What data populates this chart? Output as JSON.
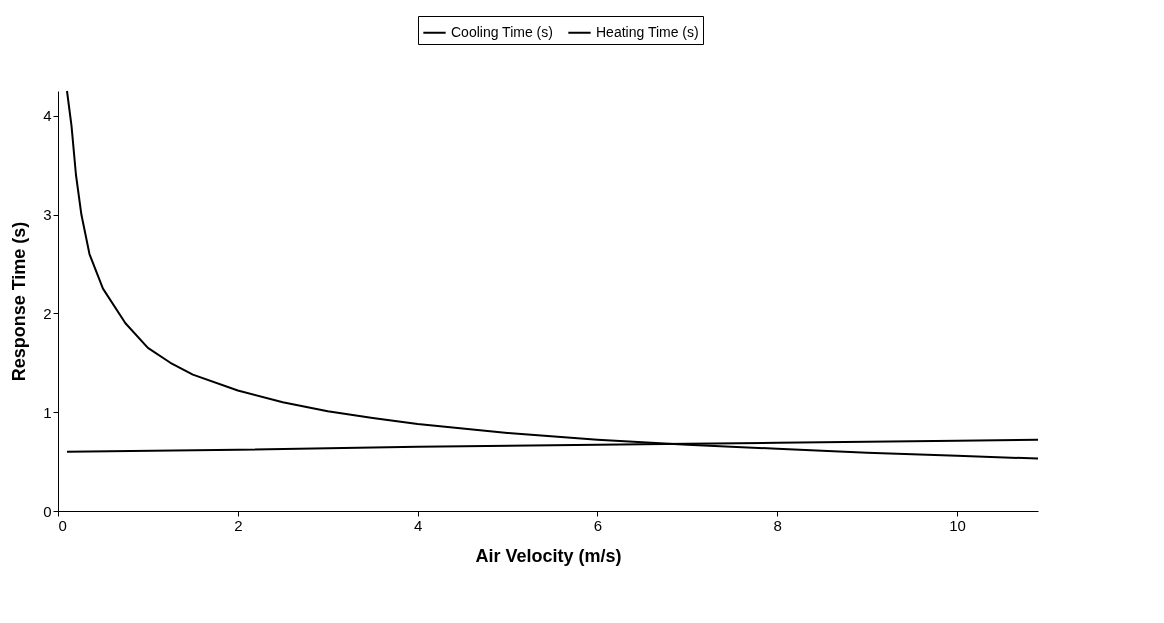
{
  "chart_data": {
    "type": "line",
    "xlabel": "Air Velocity (m/s)",
    "ylabel": "Response Time (s)",
    "xlim": [
      0,
      10.9
    ],
    "xticks": [
      0,
      2,
      4,
      6,
      8,
      10
    ],
    "ylim": [
      0,
      4.25
    ],
    "yticks": [
      0,
      1,
      2,
      3,
      4
    ],
    "legend": "top",
    "grid": false,
    "marker": "none",
    "line_style": "solid",
    "series": [
      {
        "name": "Cooling Time (s)",
        "color": "#000000",
        "x": [
          0.1,
          0.15,
          0.2,
          0.26,
          0.35,
          0.5,
          0.75,
          1.0,
          1.25,
          1.5,
          2,
          2.5,
          3,
          3.5,
          4,
          5,
          6,
          7,
          8,
          9,
          10,
          10.9
        ],
        "values": [
          4.25,
          3.9,
          3.4,
          3.0,
          2.6,
          2.25,
          1.9,
          1.65,
          1.5,
          1.38,
          1.22,
          1.1,
          1.01,
          0.94,
          0.88,
          0.79,
          0.72,
          0.67,
          0.63,
          0.59,
          0.56,
          0.53
        ]
      },
      {
        "name": "Heating Time (s)",
        "color": "#000000",
        "x": [
          0.1,
          2,
          4,
          6,
          7,
          8,
          10,
          10.9
        ],
        "values": [
          0.6,
          0.62,
          0.65,
          0.67,
          0.68,
          0.69,
          0.71,
          0.72
        ]
      }
    ]
  }
}
